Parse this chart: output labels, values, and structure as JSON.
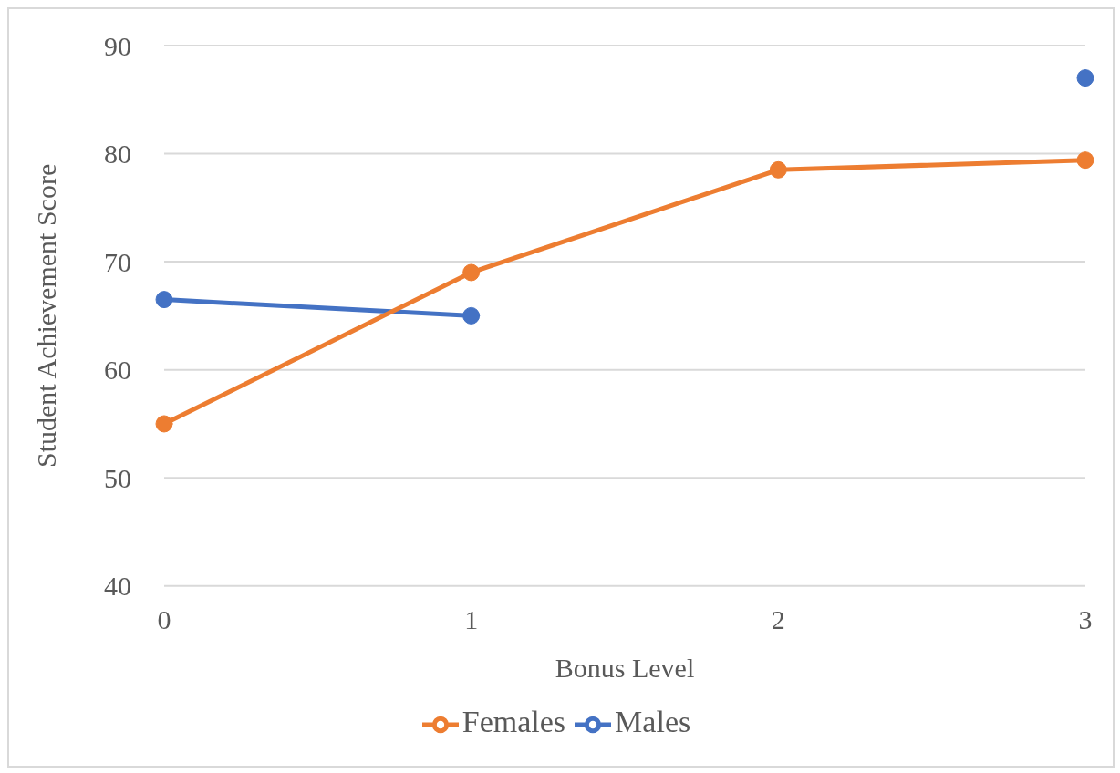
{
  "chart_data": {
    "type": "line",
    "xlabel": "Bonus Level",
    "ylabel": "Student Achievement  Score",
    "categories": [
      "0",
      "1",
      "2",
      "3"
    ],
    "series": [
      {
        "name": "Males",
        "color": "#4472c4",
        "values": [
          66.5,
          65,
          null,
          87
        ]
      },
      {
        "name": "Females",
        "color": "#ed7d31",
        "values": [
          55,
          69,
          78.5,
          79.4
        ]
      }
    ],
    "ylim": [
      40,
      90
    ],
    "yticks": [
      40,
      50,
      60,
      70,
      80,
      90
    ],
    "grid": "y",
    "legend": "bottom",
    "marker": "circle",
    "line_style": "solid"
  }
}
